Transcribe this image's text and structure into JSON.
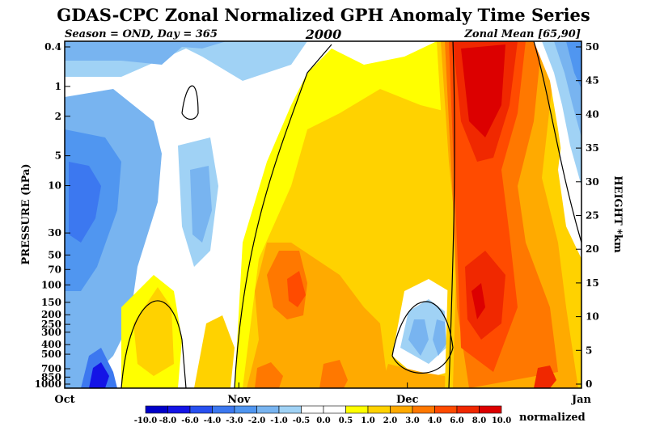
{
  "chart_data": {
    "type": "heatmap",
    "title": "GDAS-CPC Zonal Normalized GPH Anomaly Time Series",
    "subtitle_left": "Season = OND, Day = 365",
    "subtitle_center": "2000",
    "subtitle_right": "Zonal Mean [65,90]",
    "ylabel_left": "PRESSURE (hPa)",
    "ylabel_right": "HEIGHT *km",
    "x_ticks": [
      "Oct",
      "Nov",
      "Dec",
      "Jan"
    ],
    "pressure_ticks": [
      "0.4",
      "1",
      "2",
      "5",
      "10",
      "30",
      "50",
      "70",
      "100",
      "150",
      "200",
      "250",
      "300",
      "400",
      "500",
      "700",
      "850",
      "1000"
    ],
    "height_ticks": [
      "0",
      "5",
      "10",
      "15",
      "20",
      "25",
      "30",
      "35",
      "40",
      "45",
      "50"
    ],
    "colorbar": {
      "label": "normalized",
      "boundaries": [
        "-10.0",
        "-8.0",
        "-6.0",
        "-4.0",
        "-3.0",
        "-2.0",
        "-1.0",
        "-0.5",
        "0.0",
        "0.5",
        "1.0",
        "2.0",
        "3.0",
        "4.0",
        "6.0",
        "8.0",
        "10.0"
      ],
      "colors": [
        "#0000c8",
        "#1414e6",
        "#2850f0",
        "#3c78f0",
        "#5096f0",
        "#78b4f0",
        "#a0d2f5",
        "#ffffff",
        "#ffffff",
        "#ffff00",
        "#ffd200",
        "#ffaa00",
        "#ff7800",
        "#ff4b00",
        "#f02800",
        "#dc0000"
      ]
    },
    "time_periods": [
      {
        "period": "Oct early",
        "upper": "-1.0 to -2.0",
        "middle": "-1.0 to -3.0",
        "lower": "-2.0 to -10.0"
      },
      {
        "period": "Oct late",
        "upper": "-0.5 to 0.5",
        "middle": "-0.5 to -1.0",
        "lower": "0.5 to 2.0"
      },
      {
        "period": "Nov",
        "upper": "1.0 to 2.0",
        "middle": "1.0 to 2.0",
        "lower": "2.0 to 4.0"
      },
      {
        "period": "Dec early",
        "upper": "1.0 to 2.0",
        "middle": "2.0",
        "lower": "-0.5 to -2.0"
      },
      {
        "period": "Dec mid-late",
        "upper": "3.0 to 8.0",
        "middle": "3.0 to 4.0",
        "lower": "3.0 to 6.0"
      },
      {
        "period": "Dec end",
        "upper": "-0.5 to -2.0",
        "middle": "1.0 to 2.0",
        "lower": "2.0 to 3.0"
      }
    ]
  }
}
